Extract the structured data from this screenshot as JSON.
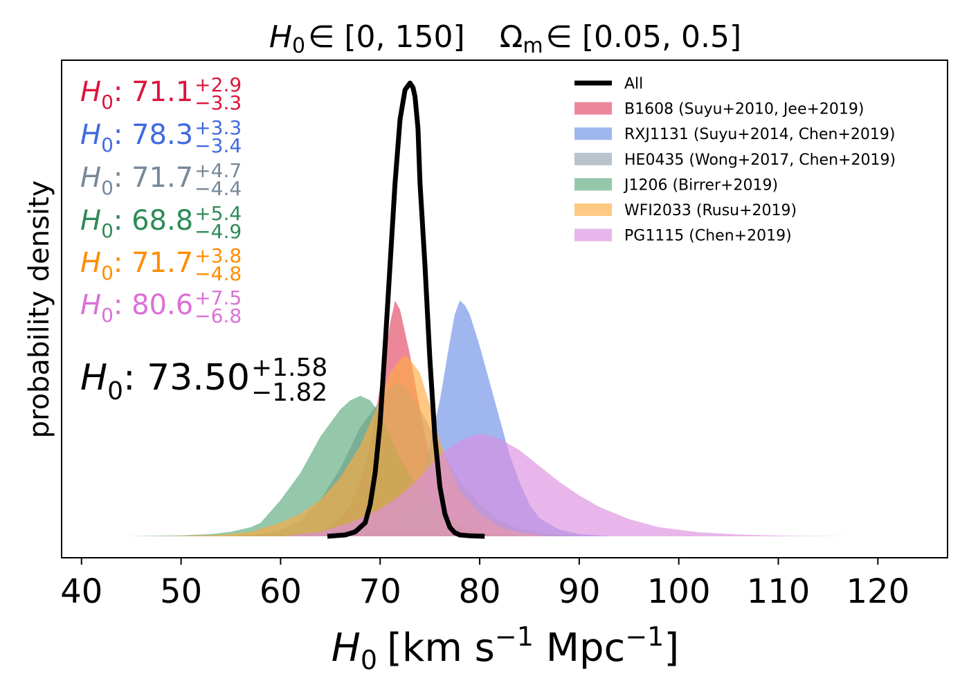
{
  "chart_data": {
    "type": "area",
    "title_parts": {
      "h0_symbol": "H",
      "h0_sub": "0",
      "h0_range": "∈ [0, 150]",
      "om_symbol": "Ω",
      "om_sub": "m",
      "om_range": "∈ [0.05, 0.5]"
    },
    "xlabel_parts": {
      "symbol": "H",
      "sub": "0",
      "units": "[km s",
      "exp1": "−1",
      "mpc": " Mpc",
      "exp2": "−1",
      "close": "]"
    },
    "ylabel": "probability density",
    "xlim": [
      38,
      127
    ],
    "ylim": [
      0,
      1.05
    ],
    "x_ticks": [
      40,
      50,
      60,
      70,
      80,
      90,
      100,
      110,
      120
    ],
    "x_tick_labels": [
      "40",
      "50",
      "60",
      "70",
      "80",
      "90",
      "100",
      "110",
      "120"
    ],
    "yticks_shown": false,
    "legend_position": "upper-right",
    "legend_frame": false,
    "combined": {
      "name": "All",
      "color": "#000000",
      "x": [
        64.7,
        66.5,
        67.5,
        68.5,
        69.0,
        69.5,
        70.0,
        70.5,
        71.0,
        71.5,
        72.0,
        72.5,
        73.0,
        73.3,
        73.5,
        73.8,
        74.0,
        74.5,
        75.0,
        75.5,
        76.0,
        76.5,
        77.0,
        77.5,
        78.0,
        79.0,
        80.5
      ],
      "y": [
        0.0,
        0.003,
        0.01,
        0.03,
        0.07,
        0.14,
        0.25,
        0.42,
        0.6,
        0.78,
        0.92,
        0.985,
        1.0,
        0.99,
        0.97,
        0.9,
        0.78,
        0.6,
        0.39,
        0.22,
        0.11,
        0.05,
        0.02,
        0.008,
        0.003,
        0.001,
        0.0
      ]
    },
    "series": [
      {
        "name": "B1608 (Suyu+2010, Jee+2019)",
        "color": "#e4546f",
        "opacity": 0.7,
        "x": [
          60,
          63,
          65,
          66,
          67,
          68,
          69,
          70,
          71,
          71.5,
          72,
          73,
          74,
          75,
          76,
          77,
          78,
          79,
          80,
          82,
          84
        ],
        "y": [
          0,
          0.004,
          0.02,
          0.04,
          0.07,
          0.12,
          0.2,
          0.33,
          0.47,
          0.52,
          0.5,
          0.4,
          0.28,
          0.17,
          0.09,
          0.05,
          0.025,
          0.01,
          0.005,
          0.001,
          0
        ]
      },
      {
        "name": "RXJ1131 (Suyu+2014, Chen+2019)",
        "color": "#6b8fe6",
        "opacity": 0.65,
        "x": [
          64,
          67,
          70,
          72,
          73,
          74,
          75,
          76,
          77,
          77.5,
          78,
          78.5,
          79,
          80,
          81,
          82,
          83,
          84,
          85,
          86,
          88,
          90,
          93
        ],
        "y": [
          0,
          0.005,
          0.02,
          0.05,
          0.08,
          0.12,
          0.2,
          0.3,
          0.43,
          0.49,
          0.52,
          0.51,
          0.49,
          0.42,
          0.34,
          0.26,
          0.18,
          0.12,
          0.07,
          0.04,
          0.015,
          0.005,
          0
        ]
      },
      {
        "name": "HE0435 (Wong+2017, Chen+2019)",
        "color": "#8a9bab",
        "opacity": 0.6,
        "x": [
          55,
          58,
          60,
          62,
          64,
          66,
          68,
          70,
          71,
          71.7,
          72.5,
          74,
          76,
          78,
          80,
          82,
          84,
          87,
          90
        ],
        "y": [
          0,
          0.005,
          0.015,
          0.035,
          0.08,
          0.15,
          0.24,
          0.3,
          0.33,
          0.34,
          0.33,
          0.28,
          0.2,
          0.12,
          0.07,
          0.035,
          0.016,
          0.005,
          0
        ]
      },
      {
        "name": "J1206 (Birrer+2019)",
        "color": "#4fa171",
        "opacity": 0.6,
        "x": [
          44.5,
          50,
          53,
          55,
          57,
          58,
          60,
          62,
          64,
          66,
          67,
          68,
          69,
          70,
          71,
          72,
          74,
          76,
          78,
          80,
          83,
          86
        ],
        "y": [
          0,
          0.002,
          0.005,
          0.01,
          0.02,
          0.03,
          0.08,
          0.14,
          0.22,
          0.28,
          0.3,
          0.31,
          0.3,
          0.27,
          0.22,
          0.17,
          0.1,
          0.05,
          0.025,
          0.01,
          0.003,
          0
        ]
      },
      {
        "name": "WFI2033 (Rusu+2019)",
        "color": "#ffaa40",
        "opacity": 0.65,
        "x": [
          48,
          54,
          57,
          60,
          62,
          64,
          66,
          68,
          70,
          71,
          72,
          72.5,
          73,
          74,
          75,
          76,
          77,
          78,
          80,
          82,
          84,
          87
        ],
        "y": [
          0,
          0.003,
          0.01,
          0.03,
          0.05,
          0.08,
          0.13,
          0.2,
          0.3,
          0.36,
          0.39,
          0.4,
          0.39,
          0.36,
          0.29,
          0.21,
          0.15,
          0.1,
          0.05,
          0.02,
          0.008,
          0
        ]
      },
      {
        "name": "PG1115 (Chen+2019)",
        "color": "#dc8fe0",
        "opacity": 0.65,
        "x": [
          60,
          64,
          67,
          70,
          72,
          74,
          76,
          78,
          79,
          80,
          81,
          82,
          84,
          86,
          88,
          90,
          92,
          95,
          98,
          102,
          106,
          110,
          115,
          118
        ],
        "y": [
          0,
          0.01,
          0.03,
          0.06,
          0.09,
          0.13,
          0.18,
          0.21,
          0.22,
          0.225,
          0.222,
          0.215,
          0.19,
          0.155,
          0.12,
          0.09,
          0.065,
          0.038,
          0.02,
          0.009,
          0.004,
          0.0015,
          0.0003,
          0
        ]
      }
    ],
    "annotations": [
      {
        "label": "H",
        "sub": "0",
        "value": ": 71.1",
        "plus": "+2.9",
        "minus": "−3.3",
        "color": "#dc143c",
        "series_index": 0,
        "size": "medium"
      },
      {
        "label": "H",
        "sub": "0",
        "value": ": 78.3",
        "plus": "+3.3",
        "minus": "−3.4",
        "color": "#4169e1",
        "series_index": 1,
        "size": "medium"
      },
      {
        "label": "H",
        "sub": "0",
        "value": ": 71.7",
        "plus": "+4.7",
        "minus": "−4.4",
        "color": "#778899",
        "series_index": 2,
        "size": "medium"
      },
      {
        "label": "H",
        "sub": "0",
        "value": ": 68.8",
        "plus": "+5.4",
        "minus": "−4.9",
        "color": "#2e8b57",
        "series_index": 3,
        "size": "medium"
      },
      {
        "label": "H",
        "sub": "0",
        "value": ": 71.7",
        "plus": "+3.8",
        "minus": "−4.8",
        "color": "#ff8c00",
        "series_index": 4,
        "size": "medium"
      },
      {
        "label": "H",
        "sub": "0",
        "value": ": 80.6",
        "plus": "+7.5",
        "minus": "−6.8",
        "color": "#da70d6",
        "series_index": 5,
        "size": "medium"
      },
      {
        "label": "H",
        "sub": "0",
        "value": ": 73.50",
        "plus": "+1.58",
        "minus": "−1.82",
        "color": "#000000",
        "series_index": -1,
        "size": "large"
      }
    ]
  }
}
